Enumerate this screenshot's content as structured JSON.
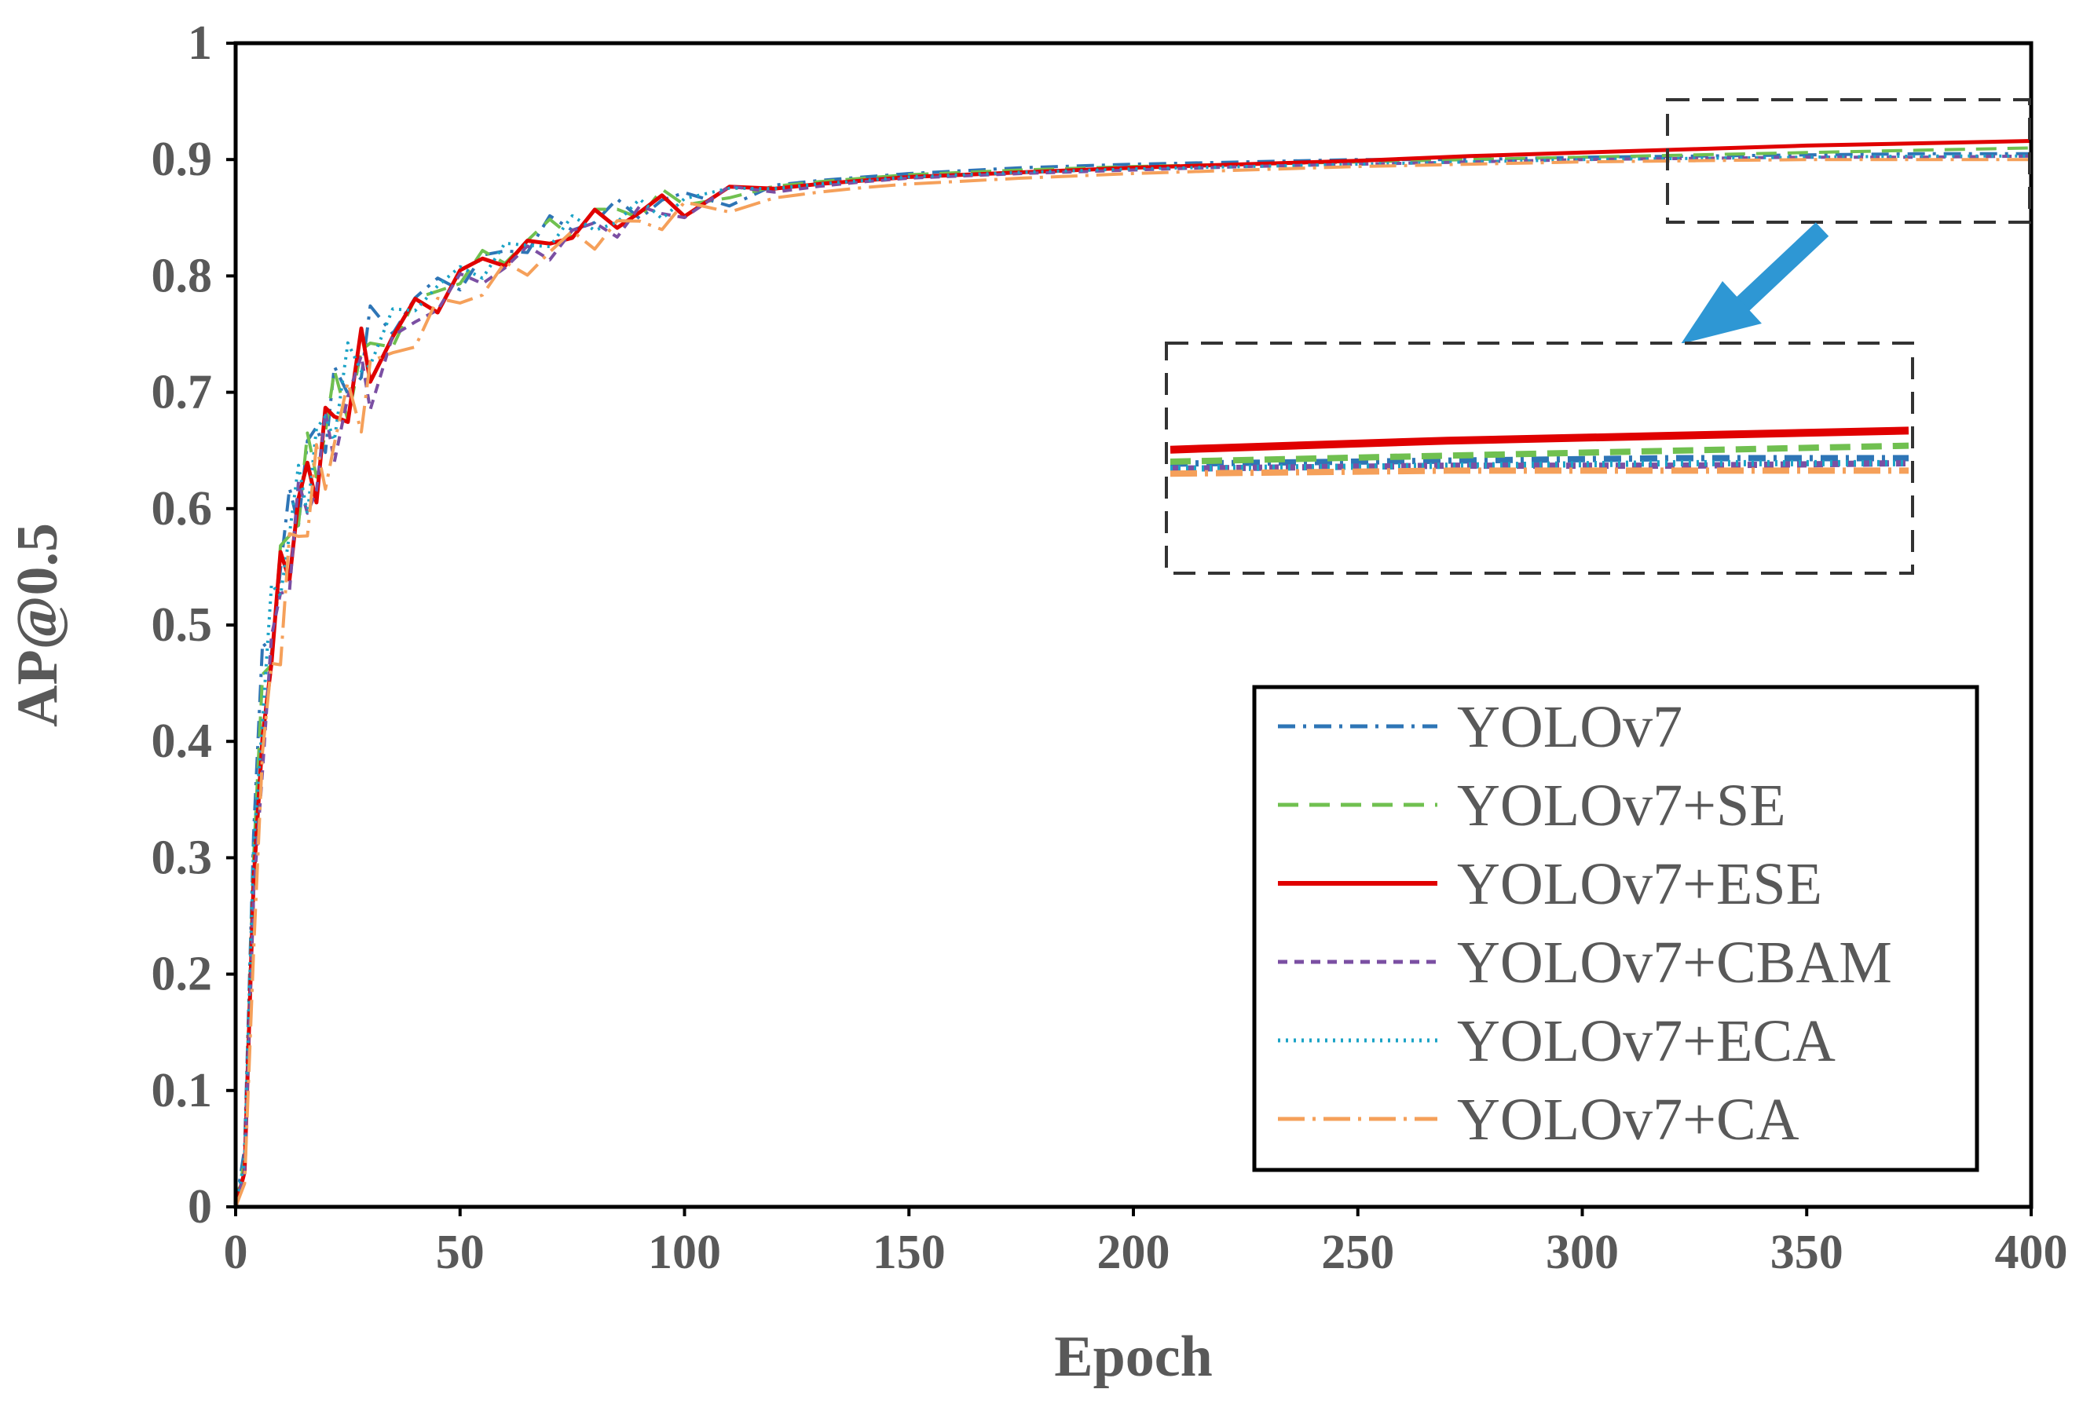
{
  "chart_data": {
    "type": "line",
    "title": "",
    "xlabel": "Epoch",
    "ylabel": "AP@0.5",
    "xlim": [
      0,
      400
    ],
    "ylim": [
      0,
      1
    ],
    "x_ticks": [
      "0",
      "50",
      "100",
      "150",
      "200",
      "250",
      "300",
      "350",
      "400"
    ],
    "y_ticks": [
      "0",
      "0.1",
      "0.2",
      "0.3",
      "0.4",
      "0.5",
      "0.6",
      "0.7",
      "0.8",
      "0.9",
      "1"
    ],
    "grid": false,
    "legend_position": "bottom-right",
    "x": [
      0,
      2,
      4,
      6,
      8,
      10,
      12,
      14,
      16,
      18,
      20,
      22,
      25,
      28,
      30,
      35,
      40,
      45,
      50,
      55,
      60,
      65,
      70,
      75,
      80,
      85,
      90,
      95,
      100,
      110,
      120,
      130,
      140,
      150,
      175,
      200,
      225,
      250,
      275,
      300,
      325,
      350,
      375,
      400
    ],
    "series": [
      {
        "name": "YOLOv7",
        "color": "#2E75B6",
        "style": "dash-dot",
        "values": [
          0.0,
          0.05,
          0.32,
          0.45,
          0.5,
          0.55,
          0.59,
          0.62,
          0.64,
          0.66,
          0.68,
          0.69,
          0.71,
          0.73,
          0.74,
          0.76,
          0.78,
          0.79,
          0.8,
          0.81,
          0.82,
          0.83,
          0.84,
          0.845,
          0.85,
          0.855,
          0.86,
          0.862,
          0.865,
          0.872,
          0.878,
          0.882,
          0.885,
          0.888,
          0.893,
          0.896,
          0.898,
          0.9,
          0.9,
          0.902,
          0.903,
          0.904,
          0.905,
          0.905
        ]
      },
      {
        "name": "YOLOv7+SE",
        "color": "#70C050",
        "style": "dashed",
        "values": [
          0.0,
          0.04,
          0.3,
          0.44,
          0.5,
          0.54,
          0.58,
          0.61,
          0.63,
          0.65,
          0.67,
          0.69,
          0.71,
          0.72,
          0.73,
          0.75,
          0.77,
          0.79,
          0.8,
          0.81,
          0.82,
          0.83,
          0.84,
          0.845,
          0.85,
          0.855,
          0.86,
          0.863,
          0.866,
          0.872,
          0.877,
          0.881,
          0.884,
          0.887,
          0.891,
          0.894,
          0.896,
          0.898,
          0.9,
          0.902,
          0.904,
          0.906,
          0.908,
          0.91
        ]
      },
      {
        "name": "YOLOv7+ESE",
        "color": "#E00000",
        "style": "solid",
        "values": [
          0.0,
          0.03,
          0.28,
          0.42,
          0.48,
          0.53,
          0.57,
          0.6,
          0.62,
          0.64,
          0.66,
          0.68,
          0.7,
          0.72,
          0.73,
          0.75,
          0.77,
          0.78,
          0.8,
          0.81,
          0.82,
          0.82,
          0.83,
          0.84,
          0.845,
          0.85,
          0.855,
          0.86,
          0.863,
          0.87,
          0.875,
          0.879,
          0.882,
          0.885,
          0.889,
          0.893,
          0.896,
          0.899,
          0.903,
          0.906,
          0.909,
          0.912,
          0.914,
          0.916
        ]
      },
      {
        "name": "YOLOv7+CBAM",
        "color": "#7B4FA3",
        "style": "short-dash",
        "values": [
          0.0,
          0.03,
          0.27,
          0.41,
          0.47,
          0.52,
          0.56,
          0.59,
          0.61,
          0.63,
          0.65,
          0.67,
          0.69,
          0.71,
          0.72,
          0.74,
          0.76,
          0.78,
          0.79,
          0.8,
          0.81,
          0.815,
          0.825,
          0.835,
          0.84,
          0.845,
          0.85,
          0.855,
          0.858,
          0.865,
          0.872,
          0.877,
          0.881,
          0.884,
          0.888,
          0.891,
          0.894,
          0.896,
          0.898,
          0.9,
          0.901,
          0.902,
          0.902,
          0.903
        ]
      },
      {
        "name": "YOLOv7+ECA",
        "color": "#1BA3C6",
        "style": "dotted",
        "values": [
          0.0,
          0.04,
          0.31,
          0.44,
          0.5,
          0.55,
          0.58,
          0.61,
          0.63,
          0.65,
          0.67,
          0.69,
          0.71,
          0.73,
          0.74,
          0.76,
          0.78,
          0.79,
          0.8,
          0.81,
          0.82,
          0.825,
          0.835,
          0.84,
          0.845,
          0.85,
          0.855,
          0.86,
          0.863,
          0.869,
          0.875,
          0.879,
          0.882,
          0.885,
          0.889,
          0.892,
          0.894,
          0.896,
          0.898,
          0.9,
          0.901,
          0.902,
          0.903,
          0.903
        ]
      },
      {
        "name": "YOLOv7+CA",
        "color": "#F5A05A",
        "style": "long-dash-dot",
        "values": [
          0.0,
          0.02,
          0.22,
          0.38,
          0.45,
          0.5,
          0.55,
          0.58,
          0.6,
          0.62,
          0.64,
          0.66,
          0.68,
          0.7,
          0.71,
          0.73,
          0.75,
          0.77,
          0.78,
          0.79,
          0.8,
          0.81,
          0.82,
          0.83,
          0.835,
          0.84,
          0.845,
          0.85,
          0.852,
          0.86,
          0.867,
          0.872,
          0.876,
          0.879,
          0.884,
          0.888,
          0.891,
          0.894,
          0.896,
          0.898,
          0.899,
          0.9,
          0.9,
          0.9
        ]
      }
    ],
    "annotations": [
      "dashed zoom box around epochs 320-400",
      "blue arrow pointing to magnified inset"
    ]
  }
}
